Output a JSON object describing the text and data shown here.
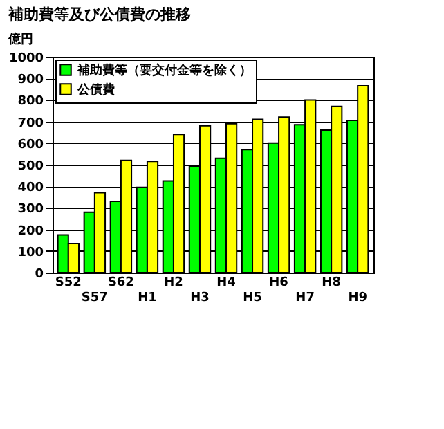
{
  "chart_data": {
    "type": "bar",
    "title": "補助費等及び公債費の推移",
    "ylabel": "億円",
    "categories": [
      "S52",
      "S57",
      "S62",
      "H1",
      "H2",
      "H3",
      "H4",
      "H5",
      "H6",
      "H7",
      "H8",
      "H9"
    ],
    "series": [
      {
        "name": "補助費等（要交付金等を除く）",
        "color": "#00ff00",
        "values": [
          175,
          280,
          330,
          395,
          425,
          490,
          530,
          570,
          600,
          685,
          660,
          705
        ]
      },
      {
        "name": "公債費",
        "color": "#ffff00",
        "values": [
          135,
          370,
          520,
          515,
          640,
          680,
          690,
          710,
          720,
          800,
          770,
          865
        ]
      }
    ],
    "ylim": [
      0,
      1000
    ],
    "yticks": [
      0,
      100,
      200,
      300,
      400,
      500,
      600,
      700,
      800,
      900,
      1000
    ],
    "grid": "y",
    "legend": "top left"
  }
}
